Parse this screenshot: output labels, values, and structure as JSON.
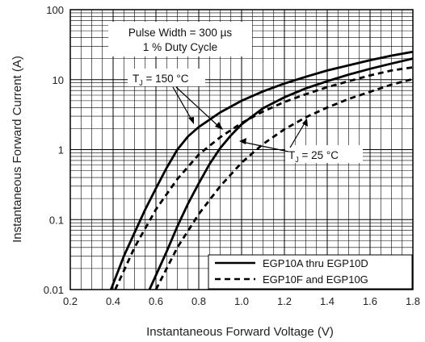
{
  "chart_data": {
    "type": "line",
    "xlabel": "Instantaneous Forward Voltage (V)",
    "ylabel": "Instantaneous Forward Current (A)",
    "xlim": [
      0.2,
      1.8
    ],
    "ylim": [
      0.01,
      100
    ],
    "yscale": "log",
    "x_ticks": [
      "0.2",
      "0.4",
      "0.6",
      "0.8",
      "1.0",
      "1.2",
      "1.4",
      "1.6",
      "1.8"
    ],
    "y_ticks": [
      "0.01",
      "0.1",
      "1",
      "10",
      "100"
    ],
    "grid": true,
    "legend_position": "bottom-right",
    "annotations": {
      "pulse_line1": "Pulse Width = 300 µs",
      "pulse_line2": "1 % Duty Cycle",
      "tj_hot_prefix": "T",
      "tj_hot_sub": "J",
      "tj_hot_value": " = 150 °C",
      "tj_cold_prefix": "T",
      "tj_cold_sub": "J",
      "tj_cold_value": " = 25 °C"
    },
    "series": [
      {
        "name": "EGP10A thru EGP10D",
        "tj": "150 °C",
        "style": "solid",
        "x": [
          0.39,
          0.45,
          0.5,
          0.55,
          0.6,
          0.65,
          0.7,
          0.75,
          0.8,
          0.9,
          1.0,
          1.1,
          1.2,
          1.3,
          1.4,
          1.5,
          1.6,
          1.7,
          1.8
        ],
        "y": [
          0.01,
          0.03,
          0.065,
          0.14,
          0.28,
          0.55,
          1.0,
          1.55,
          2.1,
          3.4,
          5.0,
          6.8,
          8.8,
          11,
          13.5,
          16,
          19,
          22,
          25
        ]
      },
      {
        "name": "EGP10F and EGP10G",
        "tj": "150 °C",
        "style": "dashed",
        "x": [
          0.41,
          0.5,
          0.6,
          0.7,
          0.8,
          0.9,
          1.0,
          1.1,
          1.2,
          1.3,
          1.4,
          1.5,
          1.6,
          1.7,
          1.8
        ],
        "y": [
          0.01,
          0.04,
          0.14,
          0.38,
          0.85,
          1.5,
          2.4,
          3.5,
          4.8,
          6.2,
          7.8,
          9.5,
          11.5,
          13.5,
          15
        ]
      },
      {
        "name": "EGP10A thru EGP10D",
        "tj": "25 °C",
        "style": "solid",
        "x": [
          0.57,
          0.65,
          0.7,
          0.75,
          0.8,
          0.85,
          0.9,
          0.95,
          1.0,
          1.1,
          1.2,
          1.3,
          1.4,
          1.5,
          1.6,
          1.7,
          1.8
        ],
        "y": [
          0.01,
          0.035,
          0.08,
          0.17,
          0.33,
          0.62,
          1.05,
          1.6,
          2.3,
          3.9,
          5.6,
          7.5,
          9.5,
          11.8,
          14.3,
          17,
          20
        ]
      },
      {
        "name": "EGP10F and EGP10G",
        "tj": "25 °C",
        "style": "dashed",
        "x": [
          0.6,
          0.7,
          0.8,
          0.9,
          1.0,
          1.1,
          1.2,
          1.3,
          1.4,
          1.5,
          1.6,
          1.7,
          1.8
        ],
        "y": [
          0.01,
          0.04,
          0.12,
          0.3,
          0.65,
          1.2,
          1.95,
          2.9,
          4.0,
          5.3,
          6.7,
          8.5,
          10.2
        ]
      }
    ],
    "legend": [
      {
        "label": "EGP10A thru EGP10D",
        "style": "solid"
      },
      {
        "label": "EGP10F and EGP10G",
        "style": "dashed"
      }
    ]
  }
}
